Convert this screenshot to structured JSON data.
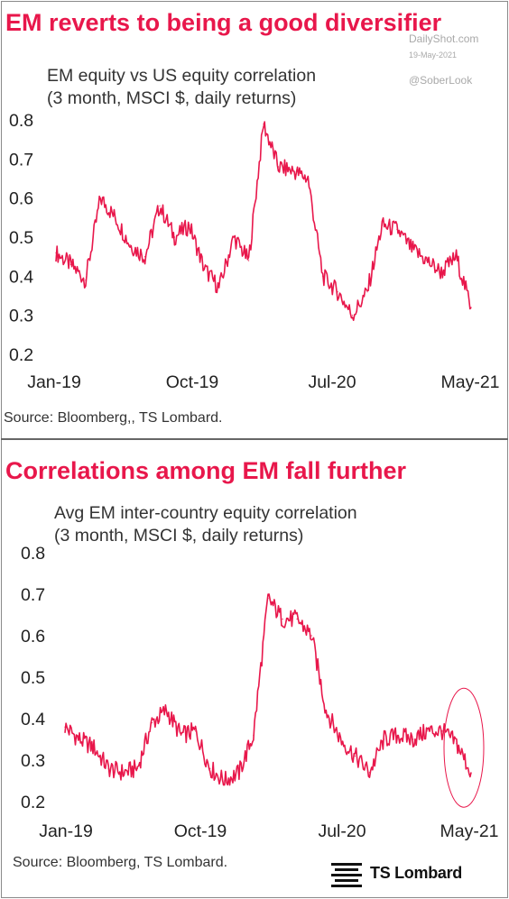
{
  "watermark": {
    "site": "DailyShot.com",
    "date": "19-May-2021",
    "handle": "@SoberLook"
  },
  "logo": {
    "text": "TS Lombard"
  },
  "line_color": "#e8174b",
  "accent_color": "#e8174b",
  "panels": [
    {
      "title": "EM reverts to being a good diversifier",
      "subtitle1": "EM equity vs US equity correlation",
      "subtitle2": "(3 month, MSCI $, daily returns)",
      "source": "Source: Bloomberg,, TS Lombard."
    },
    {
      "title": "Correlations among EM fall further",
      "subtitle1": "Avg EM inter-country equity correlation",
      "subtitle2": "(3 month, MSCI $, daily returns)",
      "source": "Source: Bloomberg, TS Lombard."
    }
  ],
  "chart_data": [
    {
      "type": "line",
      "title": "EM reverts to being a good diversifier",
      "subtitle": "EM equity vs US equity correlation (3 month, MSCI $, daily returns)",
      "xlabel": "",
      "ylabel": "",
      "x_tick_labels": [
        "Jan-19",
        "Oct-19",
        "Jul-20",
        "May-21"
      ],
      "y_tick_labels": [
        "0.8",
        "0.7",
        "0.6",
        "0.5",
        "0.4",
        "0.3",
        "0.2"
      ],
      "ylim": [
        0.2,
        0.8
      ],
      "xlim": [
        "2019-01",
        "2021-05"
      ],
      "grid": false,
      "series": [
        {
          "values_monthly": [
            [
              "2019-01",
              0.46
            ],
            [
              "2019-02",
              0.43
            ],
            [
              "2019-03",
              0.39
            ],
            [
              "2019-04",
              0.6
            ],
            [
              "2019-05",
              0.55
            ],
            [
              "2019-06",
              0.48
            ],
            [
              "2019-07",
              0.45
            ],
            [
              "2019-08",
              0.58
            ],
            [
              "2019-09",
              0.5
            ],
            [
              "2019-10",
              0.53
            ],
            [
              "2019-11",
              0.42
            ],
            [
              "2019-12",
              0.37
            ],
            [
              "2020-01",
              0.5
            ],
            [
              "2020-02",
              0.44
            ],
            [
              "2020-03",
              0.79
            ],
            [
              "2020-04",
              0.68
            ],
            [
              "2020-05",
              0.67
            ],
            [
              "2020-06",
              0.65
            ],
            [
              "2020-07",
              0.4
            ],
            [
              "2020-08",
              0.36
            ],
            [
              "2020-09",
              0.3
            ],
            [
              "2020-10",
              0.36
            ],
            [
              "2020-11",
              0.53
            ],
            [
              "2020-12",
              0.52
            ],
            [
              "2021-01",
              0.47
            ],
            [
              "2021-02",
              0.44
            ],
            [
              "2021-03",
              0.41
            ],
            [
              "2021-04",
              0.45
            ],
            [
              "2021-05",
              0.32
            ]
          ]
        }
      ]
    },
    {
      "type": "line",
      "title": "Correlations among EM fall further",
      "subtitle": "Avg EM inter-country equity correlation (3 month, MSCI $, daily returns)",
      "xlabel": "",
      "ylabel": "",
      "x_tick_labels": [
        "Jan-19",
        "Oct-19",
        "Jul-20",
        "May-21"
      ],
      "y_tick_labels": [
        "0.8",
        "0.7",
        "0.6",
        "0.5",
        "0.4",
        "0.3",
        "0.2"
      ],
      "ylim": [
        0.2,
        0.8
      ],
      "xlim": [
        "2019-01",
        "2021-05"
      ],
      "grid": false,
      "annotation": "circle around the most recent values (Apr-21 to May-21)",
      "series": [
        {
          "values_monthly": [
            [
              "2019-01",
              0.38
            ],
            [
              "2019-02",
              0.35
            ],
            [
              "2019-03",
              0.33
            ],
            [
              "2019-04",
              0.28
            ],
            [
              "2019-05",
              0.27
            ],
            [
              "2019-06",
              0.28
            ],
            [
              "2019-07",
              0.39
            ],
            [
              "2019-08",
              0.42
            ],
            [
              "2019-09",
              0.36
            ],
            [
              "2019-10",
              0.37
            ],
            [
              "2019-11",
              0.28
            ],
            [
              "2019-12",
              0.25
            ],
            [
              "2020-01",
              0.27
            ],
            [
              "2020-02",
              0.36
            ],
            [
              "2020-03",
              0.69
            ],
            [
              "2020-04",
              0.64
            ],
            [
              "2020-05",
              0.64
            ],
            [
              "2020-06",
              0.6
            ],
            [
              "2020-07",
              0.42
            ],
            [
              "2020-08",
              0.35
            ],
            [
              "2020-09",
              0.31
            ],
            [
              "2020-10",
              0.27
            ],
            [
              "2020-11",
              0.35
            ],
            [
              "2020-12",
              0.36
            ],
            [
              "2021-01",
              0.35
            ],
            [
              "2021-02",
              0.37
            ],
            [
              "2021-03",
              0.37
            ],
            [
              "2021-04",
              0.34
            ],
            [
              "2021-05",
              0.27
            ]
          ]
        }
      ]
    }
  ]
}
